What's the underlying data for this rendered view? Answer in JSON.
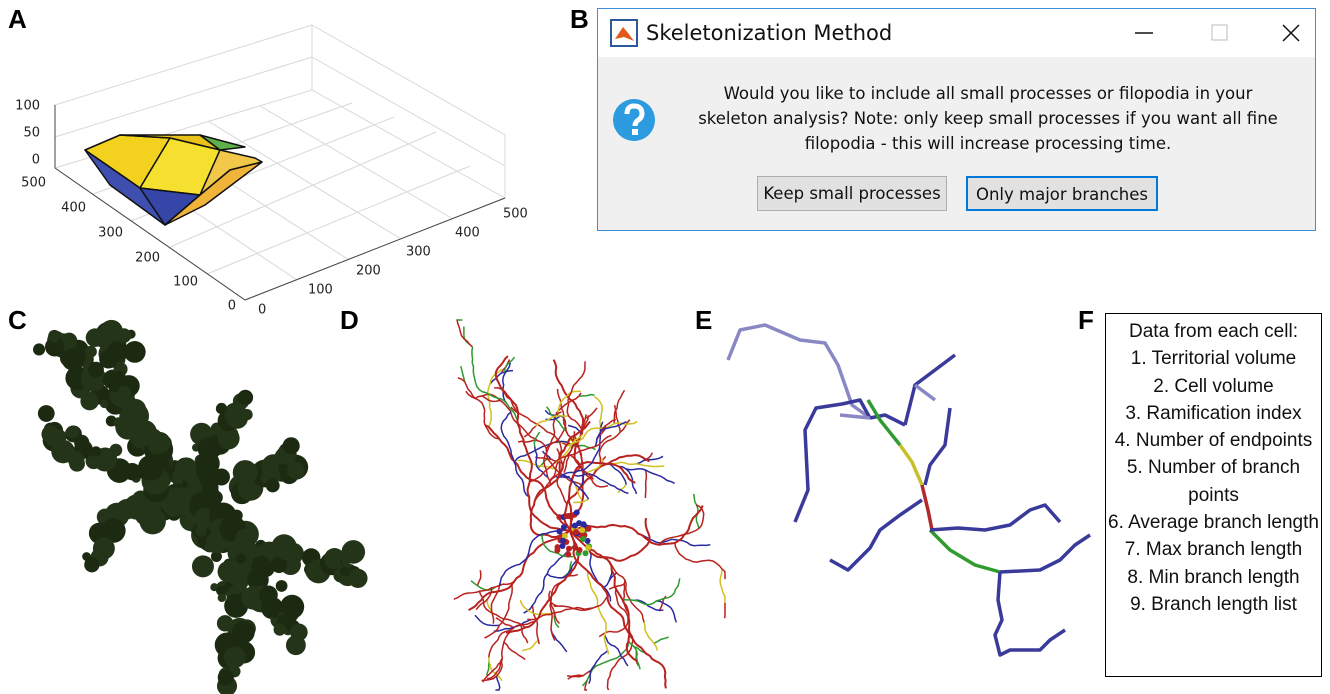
{
  "panels": {
    "a": {
      "label": "A",
      "z_ticks": [
        100,
        50,
        0
      ],
      "y_ticks": [
        500,
        400,
        300,
        200,
        100,
        0
      ],
      "x_ticks": [
        0,
        100,
        200,
        300,
        400,
        500
      ]
    },
    "b": {
      "label": "B",
      "dialog": {
        "title": "Skeletonization Method",
        "message_lines": [
          "Would you like to include all small processes or filopodia in your",
          "skeleton analysis? Note: only keep small processes if you want all fine",
          "filopodia - this will increase processing time."
        ],
        "buttons": [
          "Keep small processes",
          "Only major branches"
        ]
      }
    },
    "c": {
      "label": "C"
    },
    "d": {
      "label": "D"
    },
    "e": {
      "label": "E"
    },
    "f": {
      "label": "F",
      "heading": "Data from each cell:",
      "items": [
        "1. Territorial volume",
        "2. Cell volume",
        "3. Ramification index",
        "4. Number of endpoints",
        "5. Number of branch points",
        "6. Average branch length",
        "7. Max branch length",
        "8. Min branch length",
        "9. Branch length list"
      ]
    }
  }
}
